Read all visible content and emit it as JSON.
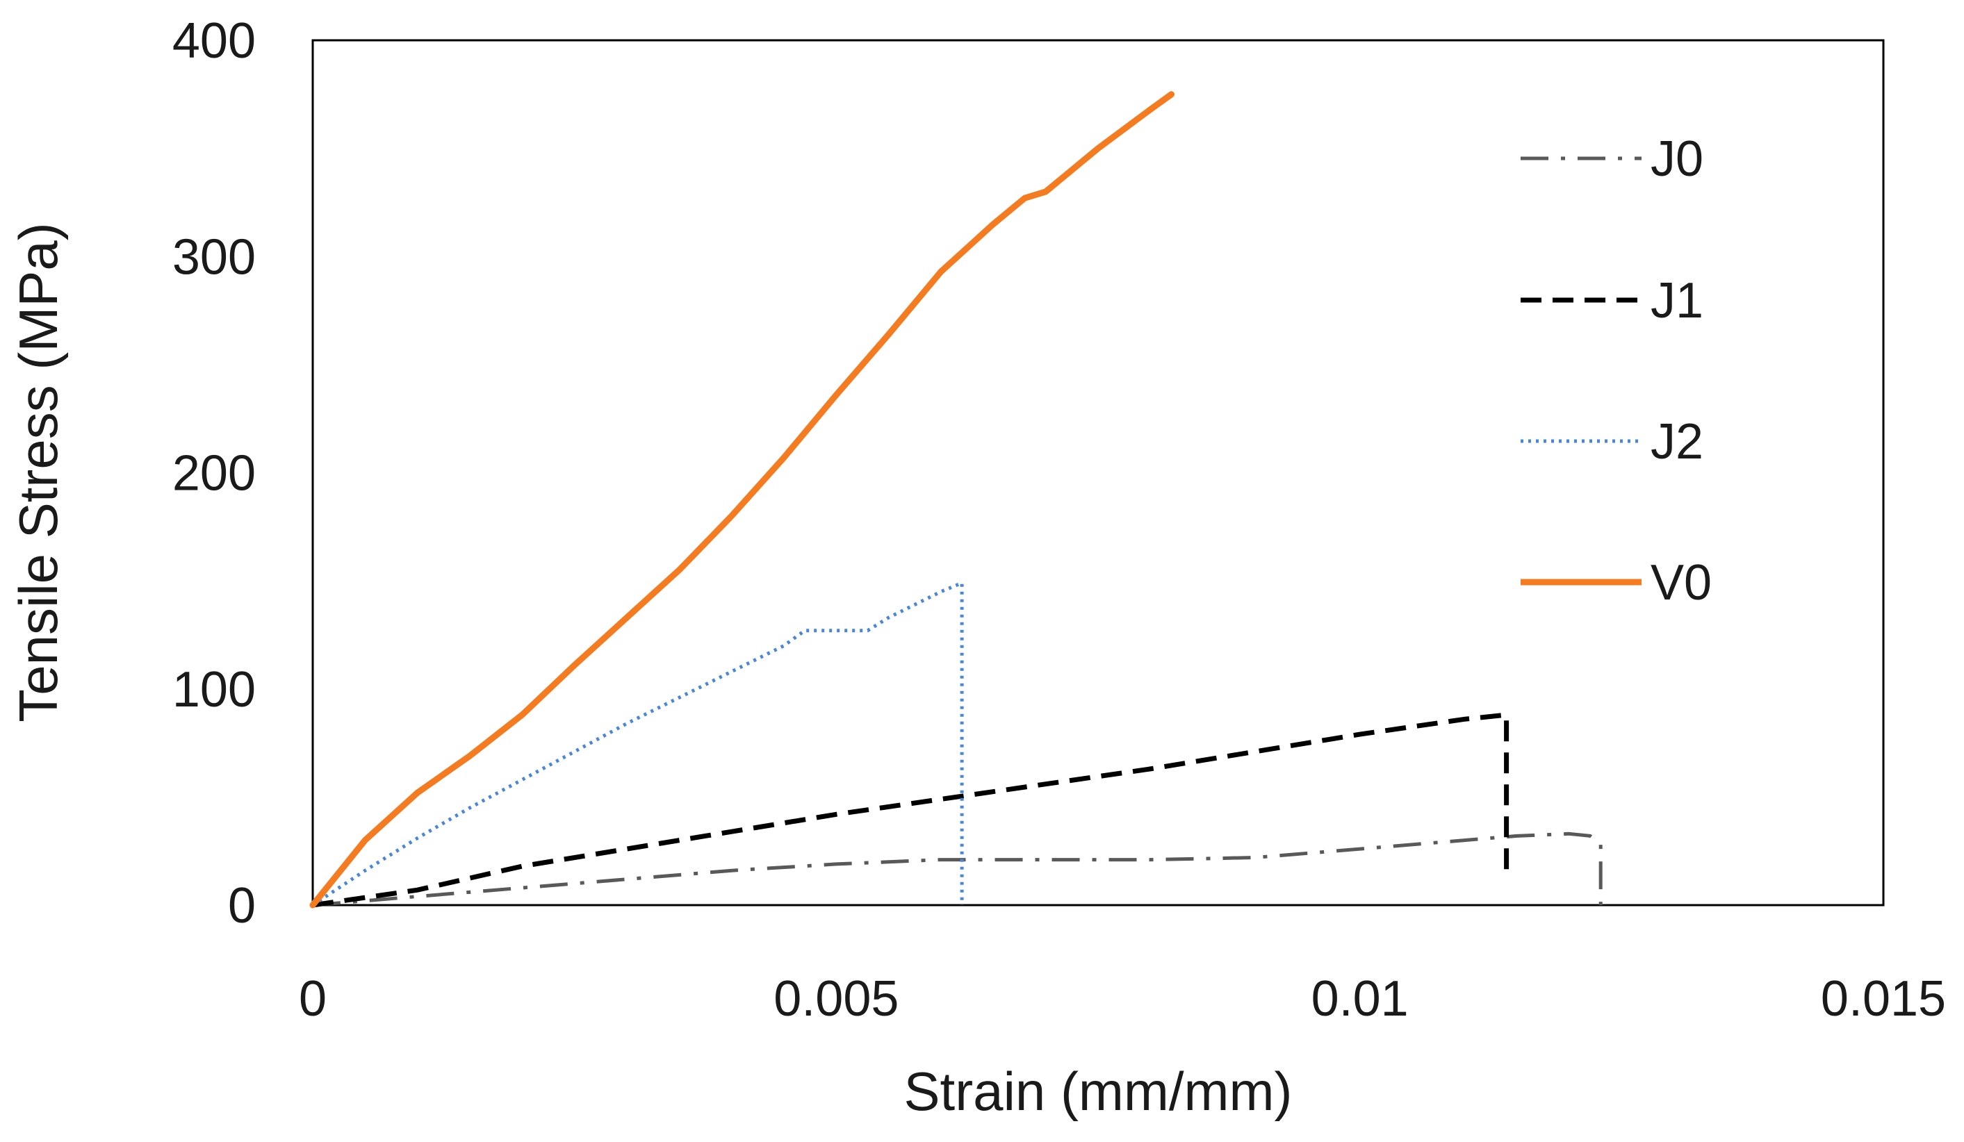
{
  "chart_data": {
    "type": "line",
    "title": "",
    "xlabel": "Strain (mm/mm)",
    "ylabel": "Tensile Stress (MPa)",
    "xlim": [
      0,
      0.015
    ],
    "ylim": [
      0,
      400
    ],
    "x_ticks": [
      0,
      0.005,
      0.01,
      0.015
    ],
    "x_tick_labels": [
      "0",
      "0.005",
      "0.01",
      "0.015"
    ],
    "y_ticks": [
      0,
      100,
      200,
      300,
      400
    ],
    "y_tick_labels": [
      "0",
      "100",
      "200",
      "300",
      "400"
    ],
    "grid": false,
    "legend_position": "right",
    "series": [
      {
        "name": "J0",
        "color": "#595959",
        "style": "dash-dot",
        "points": [
          [
            0,
            0
          ],
          [
            0.0005,
            2
          ],
          [
            0.001,
            4
          ],
          [
            0.002,
            8
          ],
          [
            0.003,
            12
          ],
          [
            0.004,
            16
          ],
          [
            0.005,
            19
          ],
          [
            0.006,
            21
          ],
          [
            0.007,
            21
          ],
          [
            0.008,
            21
          ],
          [
            0.009,
            22
          ],
          [
            0.01,
            26
          ],
          [
            0.011,
            30
          ],
          [
            0.0115,
            32
          ],
          [
            0.012,
            33
          ],
          [
            0.0122,
            32
          ],
          [
            0.0123,
            28
          ],
          [
            0.0123,
            0
          ]
        ]
      },
      {
        "name": "J1",
        "color": "#000000",
        "style": "dashed",
        "points": [
          [
            0,
            0
          ],
          [
            0.001,
            7
          ],
          [
            0.002,
            18
          ],
          [
            0.003,
            26
          ],
          [
            0.004,
            34
          ],
          [
            0.005,
            42
          ],
          [
            0.006,
            49
          ],
          [
            0.007,
            56
          ],
          [
            0.008,
            63
          ],
          [
            0.009,
            71
          ],
          [
            0.01,
            79
          ],
          [
            0.011,
            86
          ],
          [
            0.0114,
            88
          ],
          [
            0.0114,
            20
          ],
          [
            0.0114,
            15
          ]
        ]
      },
      {
        "name": "J2",
        "color": "#4a86d8",
        "style": "dotted",
        "points": [
          [
            0,
            0
          ],
          [
            0.0005,
            16
          ],
          [
            0.001,
            31
          ],
          [
            0.0015,
            45
          ],
          [
            0.002,
            58
          ],
          [
            0.0025,
            71
          ],
          [
            0.003,
            84
          ],
          [
            0.0035,
            96
          ],
          [
            0.004,
            108
          ],
          [
            0.0045,
            120
          ],
          [
            0.0047,
            127
          ],
          [
            0.005,
            127
          ],
          [
            0.0053,
            127
          ],
          [
            0.0055,
            133
          ],
          [
            0.006,
            145
          ],
          [
            0.0062,
            149
          ],
          [
            0.0062,
            0
          ]
        ]
      },
      {
        "name": "V0",
        "color": "#f47b20",
        "style": "solid",
        "points": [
          [
            0,
            0
          ],
          [
            0.0005,
            30
          ],
          [
            0.001,
            52
          ],
          [
            0.0015,
            69
          ],
          [
            0.002,
            88
          ],
          [
            0.0025,
            111
          ],
          [
            0.003,
            133
          ],
          [
            0.0035,
            155
          ],
          [
            0.004,
            180
          ],
          [
            0.0045,
            207
          ],
          [
            0.005,
            236
          ],
          [
            0.0055,
            264
          ],
          [
            0.006,
            293
          ],
          [
            0.0065,
            315
          ],
          [
            0.0068,
            327
          ],
          [
            0.007,
            330
          ],
          [
            0.0075,
            350
          ],
          [
            0.008,
            368
          ],
          [
            0.0082,
            375
          ]
        ]
      }
    ]
  }
}
